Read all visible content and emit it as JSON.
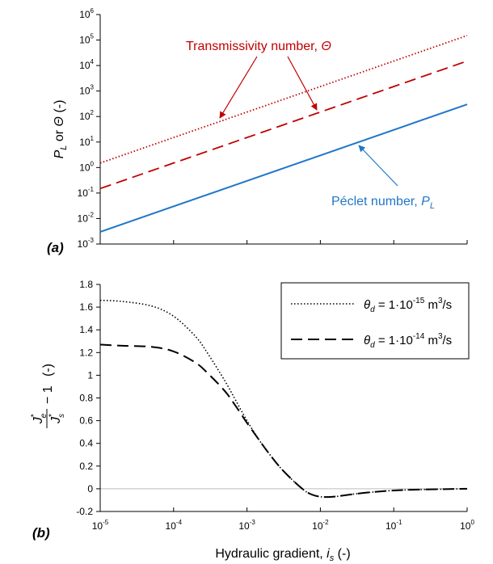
{
  "chart_data": [
    {
      "panel_label": "(a)",
      "type": "line",
      "x_scale": "log",
      "y_scale": "log",
      "xlim": [
        1e-05,
        1
      ],
      "ylim": [
        0.001,
        1000000.0
      ],
      "ylabel_parts": [
        "P",
        "L",
        " or ",
        "Θ",
        " (-)"
      ],
      "x_ticks": [
        1e-05,
        0.0001,
        0.001,
        0.01,
        0.1,
        1
      ],
      "y_tick_labels": [
        {
          "base": "10",
          "exp": "-3"
        },
        {
          "base": "10",
          "exp": "-2"
        },
        {
          "base": "10",
          "exp": "-1"
        },
        {
          "base": "10",
          "exp": "0"
        },
        {
          "base": "10",
          "exp": "1"
        },
        {
          "base": "10",
          "exp": "2"
        },
        {
          "base": "10",
          "exp": "3"
        },
        {
          "base": "10",
          "exp": "4"
        },
        {
          "base": "10",
          "exp": "5"
        },
        {
          "base": "10",
          "exp": "6"
        }
      ],
      "series": [
        {
          "id": "theta_dotted",
          "style": "dotted",
          "color": "#c00000",
          "x": [
            1e-05,
            1
          ],
          "y": [
            1.5,
            150000
          ]
        },
        {
          "id": "theta_dashed",
          "style": "dashed",
          "color": "#c00000",
          "x": [
            1e-05,
            1
          ],
          "y": [
            0.15,
            15000
          ]
        },
        {
          "id": "peclet",
          "style": "solid",
          "color": "#1f77c8",
          "x": [
            1e-05,
            1
          ],
          "y": [
            0.003,
            300
          ]
        }
      ],
      "annotations": [
        {
          "id": "transmissivity",
          "text": "Transmissivity number, ",
          "symbol": "Θ",
          "color": "#c00000"
        },
        {
          "id": "peclet",
          "text": "Péclet number, ",
          "symbol": "P",
          "sub": "L",
          "color": "#1f77c8"
        }
      ]
    },
    {
      "panel_label": "(b)",
      "type": "line",
      "x_scale": "log",
      "xlim": [
        1e-05,
        1
      ],
      "ylim": [
        -0.2,
        1.8
      ],
      "y_ticks": [
        "-0.2",
        "0",
        "0.2",
        "0.4",
        "0.6",
        "0.8",
        "1",
        "1.2",
        "1.4",
        "1.6",
        "1.8"
      ],
      "x_tick_labels": [
        {
          "base": "10",
          "exp": "-5"
        },
        {
          "base": "10",
          "exp": "-4"
        },
        {
          "base": "10",
          "exp": "-3"
        },
        {
          "base": "10",
          "exp": "-2"
        },
        {
          "base": "10",
          "exp": "-1"
        },
        {
          "base": "10",
          "exp": "0"
        }
      ],
      "xlabel_parts": [
        "Hydraulic gradient, ",
        "i",
        "s",
        " (-)"
      ],
      "ylabel_parts": {
        "num": "J",
        "num_sub": "e",
        "den": "J",
        "den_sub": "s",
        "star": "*",
        "tail": "− 1",
        "unit": "(-)"
      },
      "legend": [
        {
          "style": "dotted",
          "symbol": "θ",
          "sub": "d",
          "text": " = 1·10",
          "exp": "-15",
          "unit": " m",
          "unit_exp": "3",
          "unit_tail": "/s"
        },
        {
          "style": "dashed",
          "symbol": "θ",
          "sub": "d",
          "text": " = 1·10",
          "exp": "-14",
          "unit": " m",
          "unit_exp": "3",
          "unit_tail": "/s"
        }
      ],
      "series": [
        {
          "id": "theta_1e-15",
          "style": "dotted",
          "color": "#000000",
          "x": [
            1e-05,
            2e-05,
            5e-05,
            0.0001,
            0.0002,
            0.0003,
            0.0005,
            0.0007,
            0.001,
            0.0015,
            0.002,
            0.003,
            0.005,
            0.007,
            0.01,
            0.015,
            0.02,
            0.03,
            0.05,
            0.1,
            0.2,
            0.5,
            1
          ],
          "y": [
            1.66,
            1.65,
            1.61,
            1.52,
            1.34,
            1.18,
            0.95,
            0.78,
            0.6,
            0.42,
            0.31,
            0.17,
            0.03,
            -0.04,
            -0.07,
            -0.07,
            -0.06,
            -0.045,
            -0.03,
            -0.015,
            -0.008,
            -0.003,
            0
          ]
        },
        {
          "id": "theta_1e-14",
          "style": "dashed",
          "color": "#000000",
          "x": [
            1e-05,
            2e-05,
            5e-05,
            0.0001,
            0.0002,
            0.0003,
            0.0005,
            0.0007,
            0.001,
            0.0015,
            0.002,
            0.003,
            0.005,
            0.007,
            0.01,
            0.015,
            0.02,
            0.03,
            0.05,
            0.1,
            0.2,
            0.5,
            1
          ],
          "y": [
            1.27,
            1.26,
            1.25,
            1.21,
            1.11,
            1.01,
            0.86,
            0.73,
            0.58,
            0.42,
            0.31,
            0.17,
            0.03,
            -0.04,
            -0.07,
            -0.07,
            -0.06,
            -0.045,
            -0.03,
            -0.015,
            -0.008,
            -0.003,
            0
          ]
        }
      ]
    }
  ]
}
